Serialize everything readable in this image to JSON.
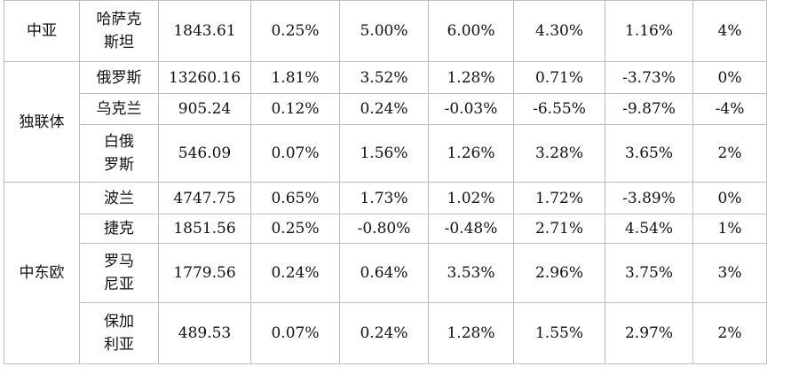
{
  "regions": [
    {
      "name": "中亚",
      "rows": [
        {
          "country": [
            "哈萨克",
            "斯坦"
          ],
          "values": [
            "1843.61",
            "0.25%",
            "5.00%",
            "6.00%",
            "4.30%",
            "1.16%",
            "4%"
          ]
        }
      ]
    },
    {
      "name": "独联体",
      "rows": [
        {
          "country": [
            "俄罗斯"
          ],
          "values": [
            "13260.16",
            "1.81%",
            "3.52%",
            "1.28%",
            "0.71%",
            "-3.73%",
            "0%"
          ]
        },
        {
          "country": [
            "乌克兰"
          ],
          "values": [
            "905.24",
            "0.12%",
            "0.24%",
            "-0.03%",
            "-6.55%",
            "-9.87%",
            "-4%"
          ]
        },
        {
          "country": [
            "白俄",
            "罗斯"
          ],
          "values": [
            "546.09",
            "0.07%",
            "1.56%",
            "1.26%",
            "3.28%",
            "3.65%",
            "2%"
          ]
        }
      ]
    },
    {
      "name": "中东欧",
      "rows": [
        {
          "country": [
            "波兰"
          ],
          "values": [
            "4747.75",
            "0.65%",
            "1.73%",
            "1.02%",
            "1.72%",
            "-3.89%",
            "0%"
          ]
        },
        {
          "country": [
            "捷克"
          ],
          "values": [
            "1851.56",
            "0.25%",
            "-0.80%",
            "-0.48%",
            "2.71%",
            "4.54%",
            "1%"
          ]
        },
        {
          "country": [
            "罗马",
            "尼亚"
          ],
          "values": [
            "1779.56",
            "0.24%",
            "0.64%",
            "3.53%",
            "2.96%",
            "3.75%",
            "3%"
          ]
        },
        {
          "country": [
            "保加",
            "利亚"
          ],
          "values": [
            "489.53",
            "0.07%",
            "0.24%",
            "1.28%",
            "1.55%",
            "2.97%",
            "2%"
          ]
        }
      ]
    }
  ]
}
